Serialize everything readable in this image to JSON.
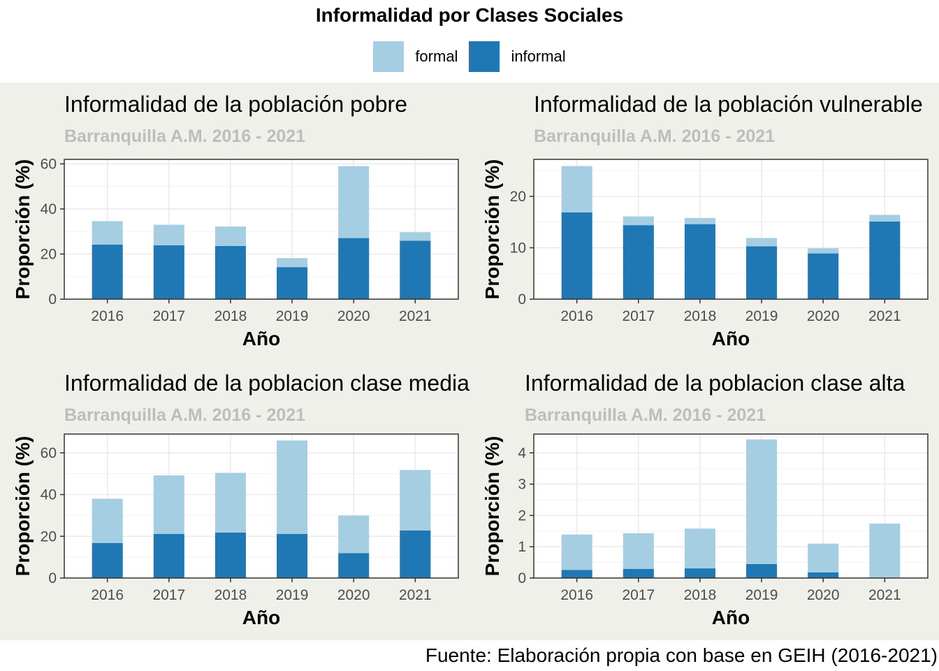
{
  "title": "Informalidad por Clases Sociales",
  "legend": {
    "items": [
      {
        "label": "formal",
        "color": "#a6cee3"
      },
      {
        "label": "informal",
        "color": "#1f78b4"
      }
    ]
  },
  "caption": "Fuente: Elaboración propia con base en GEIH (2016-2021)",
  "chart_data": [
    {
      "type": "bar",
      "stacked": true,
      "title": "Informalidad de la población pobre",
      "subtitle": "Barranquilla A.M. 2016 - 2021",
      "xlabel": "Año",
      "ylabel": "Proporción (%)",
      "categories": [
        "2016",
        "2017",
        "2018",
        "2019",
        "2020",
        "2021"
      ],
      "ylim": [
        0,
        62
      ],
      "yticks": [
        0,
        20,
        40,
        60
      ],
      "series": [
        {
          "name": "informal",
          "values": [
            24.2,
            23.9,
            23.6,
            14.2,
            27.1,
            25.9
          ]
        },
        {
          "name": "formal",
          "values": [
            10.4,
            9.1,
            8.6,
            4.0,
            31.9,
            3.8
          ]
        }
      ]
    },
    {
      "type": "bar",
      "stacked": true,
      "title": "Informalidad de la población vulnerable",
      "subtitle": "Barranquilla A.M. 2016 - 2021",
      "xlabel": "Año",
      "ylabel": "Proporción (%)",
      "categories": [
        "2016",
        "2017",
        "2018",
        "2019",
        "2020",
        "2021"
      ],
      "ylim": [
        0,
        27.2
      ],
      "yticks": [
        0,
        10,
        20
      ],
      "series": [
        {
          "name": "informal",
          "values": [
            16.9,
            14.4,
            14.6,
            10.3,
            8.9,
            15.1
          ]
        },
        {
          "name": "formal",
          "values": [
            9.0,
            1.7,
            1.2,
            1.6,
            1.0,
            1.3
          ]
        }
      ]
    },
    {
      "type": "bar",
      "stacked": true,
      "title": "Informalidad de la poblacion clase media",
      "subtitle": "Barranquilla A.M. 2016 - 2021",
      "xlabel": "Año",
      "ylabel": "Proporción (%)",
      "categories": [
        "2016",
        "2017",
        "2018",
        "2019",
        "2020",
        "2021"
      ],
      "ylim": [
        0,
        69
      ],
      "yticks": [
        0,
        20,
        40,
        60
      ],
      "series": [
        {
          "name": "informal",
          "values": [
            16.8,
            21.1,
            21.8,
            21.1,
            11.9,
            22.8
          ]
        },
        {
          "name": "formal",
          "values": [
            21.2,
            28.1,
            28.6,
            44.8,
            18.1,
            29.0
          ]
        }
      ]
    },
    {
      "type": "bar",
      "stacked": true,
      "title": "Informalidad de la poblacion clase alta",
      "subtitle": "Barranquilla A.M. 2016 - 2021",
      "xlabel": "Año",
      "ylabel": "Proporción (%)",
      "categories": [
        "2016",
        "2017",
        "2018",
        "2019",
        "2020",
        "2021"
      ],
      "ylim": [
        0,
        4.6
      ],
      "yticks": [
        0,
        1,
        2,
        3,
        4
      ],
      "series": [
        {
          "name": "informal",
          "values": [
            0.26,
            0.29,
            0.31,
            0.45,
            0.18,
            0.0
          ]
        },
        {
          "name": "formal",
          "values": [
            1.13,
            1.14,
            1.27,
            3.98,
            0.92,
            1.74
          ]
        }
      ]
    }
  ]
}
